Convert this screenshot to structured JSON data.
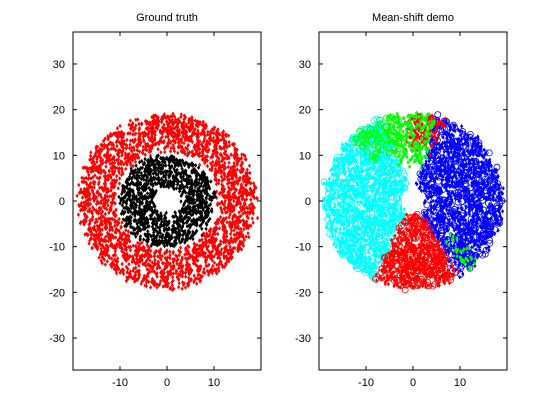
{
  "chart_data": [
    {
      "type": "scatter",
      "title": "Ground truth",
      "xlabel": "",
      "ylabel": "",
      "xlim": [
        -20,
        20
      ],
      "ylim": [
        -37,
        37
      ],
      "xticks": [
        -10,
        0,
        10
      ],
      "yticks": [
        -30,
        -20,
        -10,
        0,
        10,
        20,
        30
      ],
      "grid": false,
      "legend": "none",
      "series": [
        {
          "color": "#ff0000",
          "marker": "diamond",
          "shape": "ring",
          "center": [
            0,
            0
          ],
          "inner_radius": 11,
          "outer_radius": 19,
          "approx_points": 2600
        },
        {
          "color": "#000000",
          "marker": "diamond",
          "shape": "ring",
          "center": [
            0,
            0
          ],
          "inner_radius": 3,
          "outer_radius": 10,
          "approx_points": 1300
        }
      ]
    },
    {
      "type": "scatter",
      "title": "Mean-shift demo",
      "xlabel": "",
      "ylabel": "",
      "xlim": [
        -20,
        20
      ],
      "ylim": [
        -37,
        37
      ],
      "xticks": [
        -10,
        0,
        10
      ],
      "yticks": [
        -30,
        -20,
        -10,
        0,
        10,
        20,
        30
      ],
      "grid": false,
      "legend": "none",
      "series": [
        {
          "color": "#00ffff",
          "marker": "diamond",
          "shape": "ring-sector",
          "center": [
            0,
            0
          ],
          "inner_radius": 3,
          "outer_radius": 19,
          "angle_deg": [
            110,
            245
          ],
          "approx_points": 1100
        },
        {
          "color": "#00ffff",
          "marker": "circle",
          "shape": "ring-sector",
          "center": [
            0,
            0
          ],
          "inner_radius": 3,
          "outer_radius": 19,
          "angle_deg": [
            110,
            245
          ],
          "approx_points": 450
        },
        {
          "color": "#0000ff",
          "marker": "diamond",
          "shape": "ring-sector",
          "center": [
            0,
            0
          ],
          "inner_radius": 3,
          "outer_radius": 19,
          "angle_deg": [
            -60,
            75
          ],
          "approx_points": 1100
        },
        {
          "color": "#0000ff",
          "marker": "circle",
          "shape": "ring-sector",
          "center": [
            0,
            0
          ],
          "inner_radius": 3,
          "outer_radius": 19,
          "angle_deg": [
            -60,
            75
          ],
          "approx_points": 450
        },
        {
          "color": "#ff0000",
          "marker": "diamond",
          "shape": "ring-sector",
          "center": [
            0,
            0
          ],
          "inner_radius": 3,
          "outer_radius": 19,
          "angle_deg": [
            245,
            300
          ],
          "approx_points": 500
        },
        {
          "color": "#ff0000",
          "marker": "circle",
          "shape": "ring-sector",
          "center": [
            0,
            0
          ],
          "inner_radius": 3,
          "outer_radius": 19,
          "angle_deg": [
            245,
            300
          ],
          "approx_points": 220
        },
        {
          "color": "#ff0000",
          "marker": "diamond",
          "shape": "ring-sector",
          "center": [
            0,
            0
          ],
          "inner_radius": 11,
          "outer_radius": 19,
          "angle_deg": [
            70,
            95
          ],
          "approx_points": 180
        },
        {
          "color": "#00ff00",
          "marker": "diamond",
          "shape": "ring-sector",
          "center": [
            0,
            0
          ],
          "inner_radius": 8,
          "outer_radius": 19,
          "angle_deg": [
            75,
            110
          ],
          "approx_points": 260
        },
        {
          "color": "#00ff00",
          "marker": "circle",
          "shape": "ring-sector",
          "center": [
            0,
            0
          ],
          "inner_radius": 11,
          "outer_radius": 19,
          "angle_deg": [
            100,
            135
          ],
          "approx_points": 90
        },
        {
          "color": "#00ff00",
          "marker": "diamond",
          "shape": "ring-sector",
          "center": [
            0,
            0
          ],
          "inner_radius": 11,
          "outer_radius": 19,
          "angle_deg": [
            -52,
            -42
          ],
          "approx_points": 35
        }
      ]
    }
  ]
}
